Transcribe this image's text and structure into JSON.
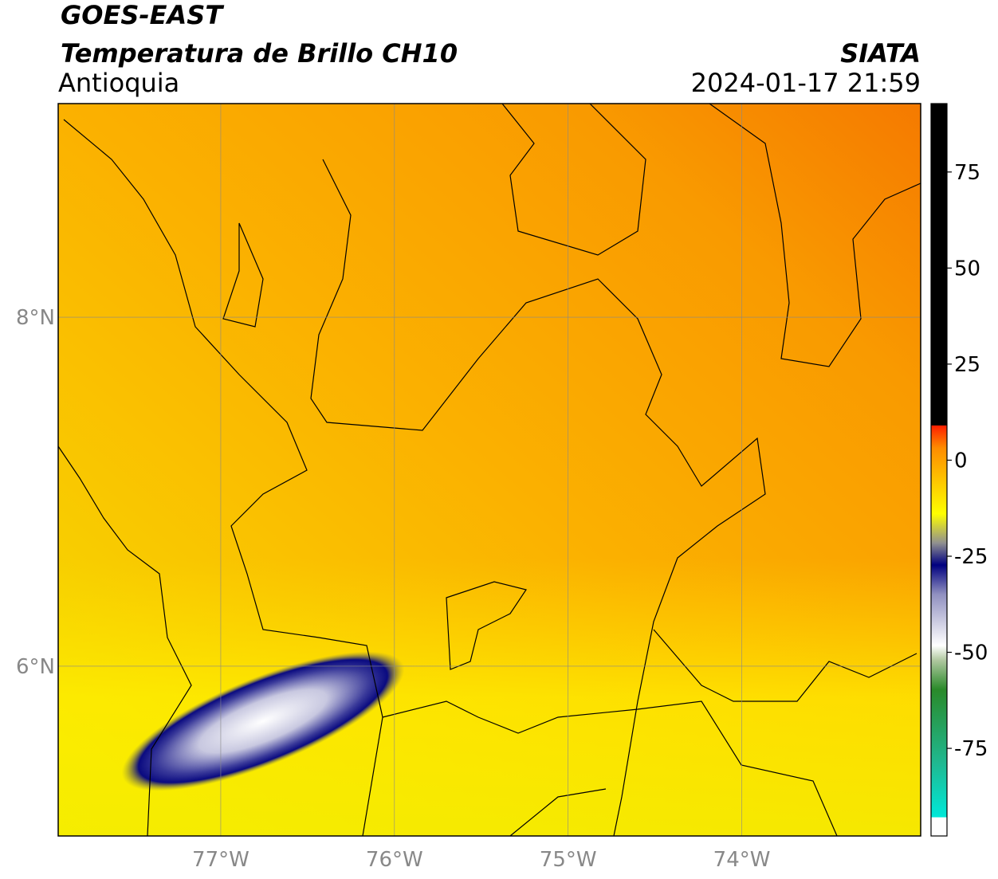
{
  "header": {
    "title": "GOES-EAST",
    "subtitle": "Temperatura de Brillo CH10",
    "region": "Antioquia",
    "source": "SIATA",
    "datetime": "2024-01-17 21:59"
  },
  "map": {
    "lon_range": [
      -77.936,
      -72.97
    ],
    "lat_range": [
      5.027,
      9.224
    ],
    "lon_ticks": [
      {
        "value": -77,
        "label": "77°W"
      },
      {
        "value": -76,
        "label": "76°W"
      },
      {
        "value": -75,
        "label": "75°W"
      },
      {
        "value": -74,
        "label": "74°W"
      }
    ],
    "lat_ticks": [
      {
        "value": 8,
        "label": "8°N"
      },
      {
        "value": 6,
        "label": "6°N"
      }
    ]
  },
  "colorbar": {
    "range": [
      -97.8,
      92.8
    ],
    "ticks": [
      75,
      50,
      25,
      0,
      -25,
      -50,
      -75
    ]
  }
}
